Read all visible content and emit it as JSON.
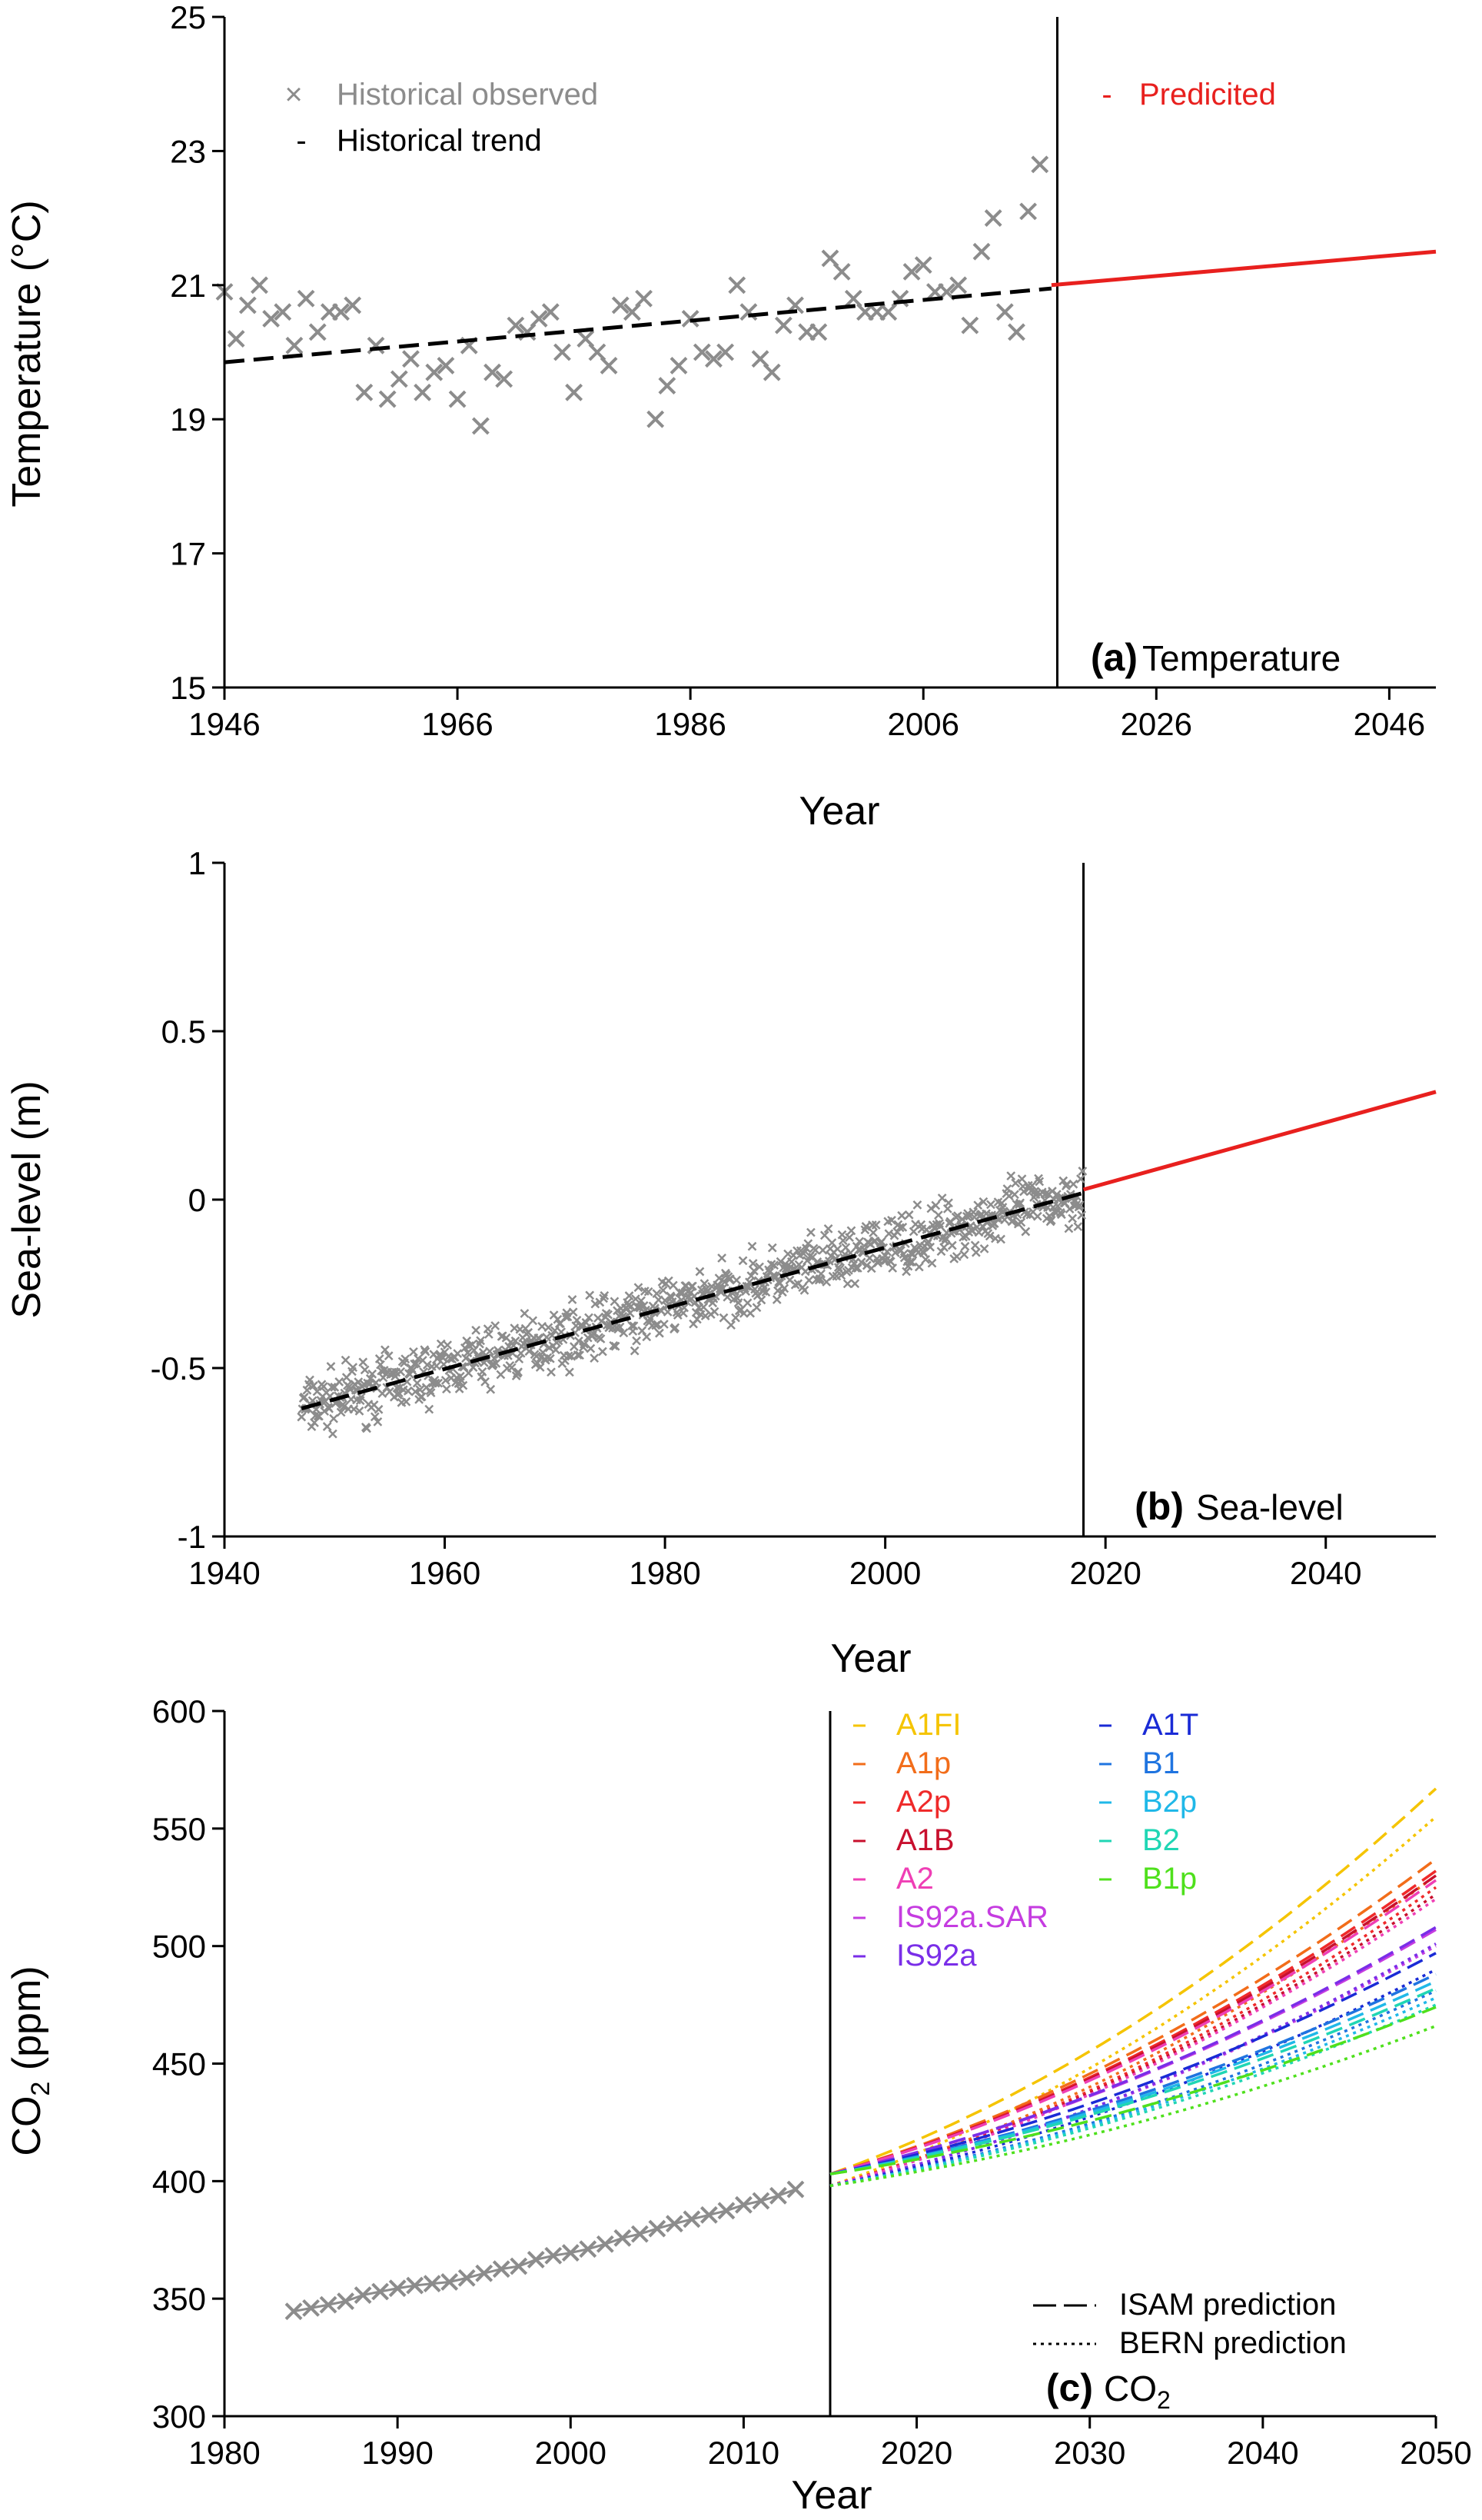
{
  "chart_data": [
    {
      "type": "scatter",
      "panel_letter": "(a)",
      "panel_name": "Temperature",
      "xlabel": "Year",
      "ylabel": "Temperature (°C)",
      "xlim": [
        1946,
        2050
      ],
      "ylim": [
        15,
        25
      ],
      "xticks": [
        1946,
        1966,
        1986,
        2006,
        2026,
        2046
      ],
      "yticks": [
        15,
        17,
        19,
        21,
        23,
        25
      ],
      "divider_x": 2017.5,
      "legend": [
        {
          "label": "Historical observed",
          "color": "#8c8c8c",
          "marker": "×"
        },
        {
          "label": "Historical trend",
          "color": "#000000",
          "marker": "-"
        },
        {
          "label": "Predicited",
          "color": "#e8201e",
          "marker": "-"
        }
      ],
      "series": [
        {
          "name": "Historical observed",
          "kind": "points",
          "color": "#8c8c8c",
          "x": [
            1946,
            1947,
            1948,
            1949,
            1950,
            1951,
            1952,
            1953,
            1954,
            1955,
            1956,
            1957,
            1958,
            1959,
            1960,
            1961,
            1962,
            1963,
            1964,
            1965,
            1966,
            1967,
            1968,
            1969,
            1970,
            1971,
            1972,
            1973,
            1974,
            1975,
            1976,
            1977,
            1978,
            1979,
            1980,
            1981,
            1982,
            1983,
            1984,
            1985,
            1986,
            1987,
            1988,
            1989,
            1990,
            1991,
            1992,
            1993,
            1994,
            1995,
            1996,
            1997,
            1998,
            1999,
            2000,
            2001,
            2002,
            2003,
            2004,
            2005,
            2006,
            2007,
            2008,
            2009,
            2010,
            2011,
            2012,
            2013,
            2014,
            2015,
            2016
          ],
          "y": [
            20.9,
            20.2,
            20.7,
            21.0,
            20.5,
            20.6,
            20.1,
            20.8,
            20.3,
            20.6,
            20.6,
            20.7,
            19.4,
            20.1,
            19.3,
            19.6,
            19.9,
            19.4,
            19.7,
            19.8,
            19.3,
            20.1,
            18.9,
            19.7,
            19.6,
            20.4,
            20.3,
            20.5,
            20.6,
            20.0,
            19.4,
            20.2,
            20.0,
            19.8,
            20.7,
            20.6,
            20.8,
            19.0,
            19.5,
            19.8,
            20.5,
            20.0,
            19.9,
            20.0,
            21.0,
            20.6,
            19.9,
            19.7,
            20.4,
            20.7,
            20.3,
            20.3,
            21.4,
            21.2,
            20.8,
            20.6,
            20.6,
            20.6,
            20.8,
            21.2,
            21.3,
            20.9,
            20.9,
            21.0,
            20.4,
            21.5,
            22.0,
            20.6,
            20.3,
            22.1,
            22.8
          ]
        },
        {
          "name": "Historical trend",
          "kind": "line",
          "style": "dashed",
          "color": "#000000",
          "x": [
            1946,
            2017
          ],
          "y": [
            19.85,
            20.95
          ]
        },
        {
          "name": "Predicited",
          "kind": "line",
          "style": "solid",
          "color": "#e8201e",
          "x": [
            2017,
            2050
          ],
          "y": [
            21.0,
            21.5
          ]
        }
      ]
    },
    {
      "type": "scatter",
      "panel_letter": "(b)",
      "panel_name": "Sea-level",
      "xlabel": "Year",
      "ylabel": "Sea-level (m)",
      "xlim": [
        1940,
        2050
      ],
      "ylim": [
        -1,
        1
      ],
      "xticks": [
        1940,
        1960,
        1980,
        2000,
        2020,
        2040
      ],
      "ytick_values": [
        -1,
        -0.5,
        0,
        0.5,
        1
      ],
      "ytick_labels": [
        "-1",
        "-0.5",
        "0",
        "0.5",
        "1"
      ],
      "divider_x": 2018,
      "series": [
        {
          "name": "Historical observed",
          "kind": "points",
          "color": "#8c8c8c",
          "description": "monthly observations 1947–2018 scattering about the trend (±0.08 m)"
        },
        {
          "name": "Historical trend",
          "kind": "line",
          "style": "dashed",
          "color": "#000000",
          "x": [
            1947,
            2018
          ],
          "y": [
            -0.62,
            0.02
          ]
        },
        {
          "name": "Predicited",
          "kind": "line",
          "style": "solid",
          "color": "#e8201e",
          "x": [
            2018,
            2050
          ],
          "y": [
            0.03,
            0.32
          ]
        }
      ]
    },
    {
      "type": "line",
      "panel_letter": "(c)",
      "panel_name": "CO",
      "panel_name_sub": "2",
      "xlabel": "Year",
      "ylabel_main": "CO",
      "ylabel_sub": "2",
      "ylabel_tail": " (ppm)",
      "xlim": [
        1980,
        2050
      ],
      "ylim": [
        300,
        600
      ],
      "xticks": [
        1980,
        1990,
        2000,
        2010,
        2020,
        2030,
        2040,
        2050
      ],
      "yticks": [
        300,
        350,
        400,
        450,
        500,
        550,
        600
      ],
      "divider_x": 2015,
      "historical": {
        "name": "Historical observed",
        "color": "#8c8c8c",
        "x": [
          1984,
          1985,
          1986,
          1987,
          1988,
          1989,
          1990,
          1991,
          1992,
          1993,
          1994,
          1995,
          1996,
          1997,
          1998,
          1999,
          2000,
          2001,
          2002,
          2003,
          2004,
          2005,
          2006,
          2007,
          2008,
          2009,
          2010,
          2011,
          2012,
          2013
        ],
        "y": [
          344.6,
          346.0,
          347.4,
          348.9,
          351.5,
          353.0,
          354.4,
          355.6,
          356.4,
          357.1,
          358.8,
          360.8,
          362.6,
          363.8,
          366.6,
          368.3,
          369.5,
          371.1,
          373.2,
          375.8,
          377.5,
          379.8,
          381.9,
          383.8,
          385.6,
          387.4,
          389.9,
          391.6,
          393.8,
          396.5
        ]
      },
      "scenarios": [
        {
          "name": "A1FI",
          "color": "#f5c400",
          "isam_2050": 567,
          "bern_2050": 555
        },
        {
          "name": "A1p",
          "color": "#f26d1a",
          "isam_2050": 537,
          "bern_2050": 530
        },
        {
          "name": "A2p",
          "color": "#ef2a2a",
          "isam_2050": 532,
          "bern_2050": 525
        },
        {
          "name": "A1B",
          "color": "#c8102e",
          "isam_2050": 530,
          "bern_2050": 522
        },
        {
          "name": "A2",
          "color": "#ef3fb5",
          "isam_2050": 528,
          "bern_2050": 520
        },
        {
          "name": "IS92a.SAR",
          "color": "#c53ce0",
          "isam_2050": 507,
          "bern_2050": 500
        },
        {
          "name": "IS92a",
          "color": "#7a2ee8",
          "isam_2050": 508,
          "bern_2050": 501
        },
        {
          "name": "A1T",
          "color": "#1a2bd6",
          "isam_2050": 497,
          "bern_2050": 490
        },
        {
          "name": "B1",
          "color": "#1f74e0",
          "isam_2050": 488,
          "bern_2050": 481
        },
        {
          "name": "B2p",
          "color": "#20b8e8",
          "isam_2050": 485,
          "bern_2050": 478
        },
        {
          "name": "B2",
          "color": "#20d6b4",
          "isam_2050": 482,
          "bern_2050": 475
        },
        {
          "name": "B1p",
          "color": "#4fe01c",
          "isam_2050": 474,
          "bern_2050": 466
        }
      ],
      "scenario_start": {
        "x": 2015,
        "isam_y": 403,
        "bern_y": 398
      },
      "linestyle_legend": [
        {
          "label": "ISAM prediction",
          "style": "dashed"
        },
        {
          "label": "BERN prediction",
          "style": "dotted"
        }
      ]
    }
  ]
}
